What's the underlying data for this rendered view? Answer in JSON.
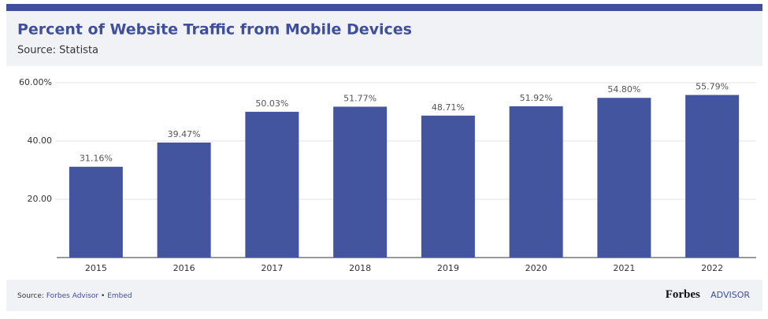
{
  "chart_data": {
    "type": "bar",
    "title": "Percent of Website Traffic from Mobile Devices",
    "subtitle": "Source: Statista",
    "categories": [
      "2015",
      "2016",
      "2017",
      "2018",
      "2019",
      "2020",
      "2021",
      "2022"
    ],
    "values": [
      31.16,
      39.47,
      50.03,
      51.77,
      48.71,
      51.92,
      54.8,
      55.79
    ],
    "value_labels": [
      "31.16%",
      "39.47%",
      "50.03%",
      "51.77%",
      "48.71%",
      "51.92%",
      "54.80%",
      "55.79%"
    ],
    "color": "#4455a0",
    "ylim": [
      0,
      60
    ],
    "yticks": [
      {
        "value": 20,
        "label": "20.00"
      },
      {
        "value": 40,
        "label": "40.00"
      },
      {
        "value": 60,
        "label": "60.00%"
      }
    ],
    "grid": true
  },
  "footer": {
    "source_label": "Source:",
    "source_link": "Forbes Advisor",
    "separator": "•",
    "embed": "Embed",
    "brand": "Forbes",
    "brand_suffix": "ADVISOR"
  }
}
